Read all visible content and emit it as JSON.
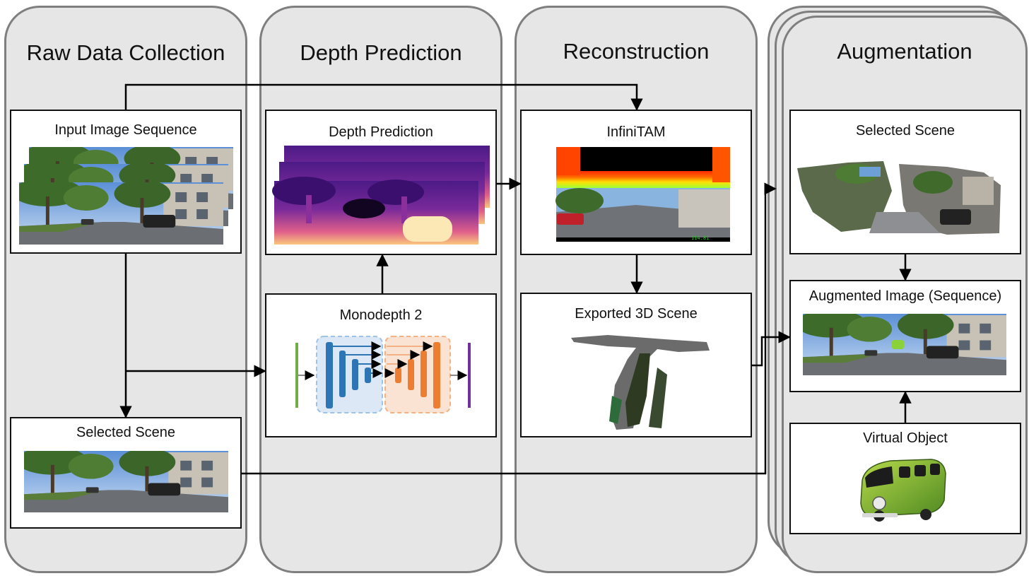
{
  "lanes": {
    "raw": "Raw Data Collection",
    "depth": "Depth Prediction",
    "recon": "Reconstruction",
    "aug": "Augmentation"
  },
  "boxes": {
    "input_sequence": "Input Image Sequence",
    "selected_scene_raw": "Selected Scene",
    "depth_prediction": "Depth Prediction",
    "monodepth": "Monodepth 2",
    "infinitam": "InfiniTAM",
    "exported_scene": "Exported 3D Scene",
    "selected_scene_aug": "Selected Scene",
    "augmented_image": "Augmented Image (Sequence)",
    "virtual_object": "Virtual Object"
  },
  "infinitam_readout": "114.81",
  "colors": {
    "lane_fill": "#e6e6e6",
    "lane_border": "#7f7f7f",
    "arrow": "#000000",
    "net_blue": "#2e75b6",
    "net_orange": "#ed7d31",
    "net_green": "#70ad47",
    "net_purple": "#7030a0"
  },
  "icons": {
    "street_photo": "street-photo-icon",
    "depth_map": "depth-map-icon",
    "network": "network-diagram-icon",
    "pointcloud": "pointcloud-icon",
    "van": "van-icon"
  }
}
